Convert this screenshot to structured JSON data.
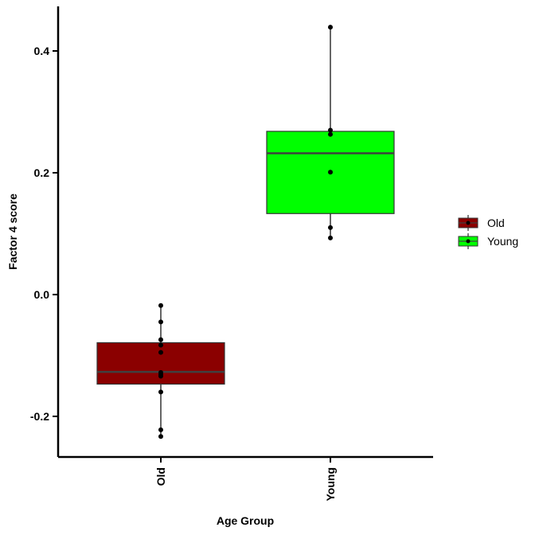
{
  "chart_data": {
    "type": "boxplot",
    "xlabel": "Age Group",
    "ylabel": "Factor 4 score",
    "ylim": [
      -0.27,
      0.47
    ],
    "yticks": [
      -0.2,
      0.0,
      0.2,
      0.4
    ],
    "ytick_labels": [
      "-0.2",
      "0.0",
      "0.2",
      "0.4"
    ],
    "categories": [
      "Old",
      "Young"
    ],
    "colors": {
      "Old": "#8b0000",
      "Young": "#00ff00",
      "median": "#404040",
      "point": "#000000"
    },
    "boxes": [
      {
        "name": "Old",
        "q1": -0.147,
        "median": -0.127,
        "q3": -0.079,
        "whisker_low": -0.233,
        "whisker_high": -0.018
      },
      {
        "name": "Young",
        "q1": 0.133,
        "median": 0.232,
        "q3": 0.268,
        "whisker_low": 0.093,
        "whisker_high": 0.439
      }
    ],
    "points": [
      {
        "group": "Old",
        "values": [
          -0.018,
          -0.045,
          -0.074,
          -0.083,
          -0.095,
          -0.128,
          -0.131,
          -0.134,
          -0.16,
          -0.222,
          -0.233
        ]
      },
      {
        "group": "Young",
        "values": [
          0.439,
          0.27,
          0.263,
          0.201,
          0.11,
          0.093
        ]
      }
    ],
    "legend": {
      "position": "right",
      "entries": [
        "Old",
        "Young"
      ]
    },
    "grid": false
  }
}
